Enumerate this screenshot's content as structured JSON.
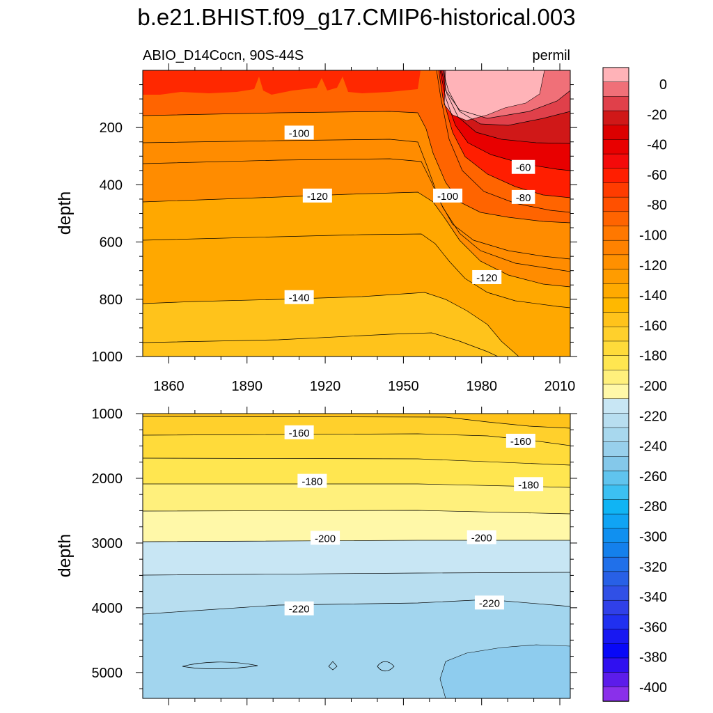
{
  "chart_data": {
    "type": "contour",
    "title": "b.e21.BHIST.f09_g17.CMIP6-historical.003",
    "left_subtitle": "ABIO_D14Cocn, 90S-44S",
    "right_subtitle": "permil",
    "xlabel": "",
    "ylabel": "depth",
    "x_ticks": [
      "1860",
      "1890",
      "1920",
      "1950",
      "1980",
      "2010"
    ],
    "x_tick_values": [
      1860,
      1890,
      1920,
      1950,
      1980,
      2010
    ],
    "xlim": [
      1850,
      2014
    ],
    "panels": [
      {
        "name": "upper",
        "ylabel": "depth",
        "ylim": [
          0,
          1000
        ],
        "y_ticks": [
          "200",
          "400",
          "600",
          "800",
          "1000"
        ],
        "y_tick_values": [
          200,
          400,
          600,
          800,
          1000
        ],
        "contour_labels": [
          {
            "text": "-100",
            "year": 1910,
            "depth": 220
          },
          {
            "text": "-120",
            "year": 1917,
            "depth": 440
          },
          {
            "text": "-140",
            "year": 1910,
            "depth": 795
          },
          {
            "text": "-60",
            "year": 1996,
            "depth": 340
          },
          {
            "text": "-80",
            "year": 1996,
            "depth": 445
          },
          {
            "text": "-100",
            "year": 1967,
            "depth": 440
          },
          {
            "text": "-120",
            "year": 1982,
            "depth": 725
          }
        ]
      },
      {
        "name": "lower",
        "ylabel": "depth",
        "ylim": [
          1000,
          5400
        ],
        "y_ticks": [
          "1000",
          "2000",
          "3000",
          "4000",
          "5000"
        ],
        "y_tick_values": [
          1000,
          2000,
          3000,
          4000,
          5000
        ],
        "contour_labels": [
          {
            "text": "-160",
            "year": 1910,
            "depth": 1300
          },
          {
            "text": "-160",
            "year": 1995,
            "depth": 1430
          },
          {
            "text": "-180",
            "year": 1915,
            "depth": 2050
          },
          {
            "text": "-180",
            "year": 1998,
            "depth": 2100
          },
          {
            "text": "-200",
            "year": 1920,
            "depth": 2930
          },
          {
            "text": "-200",
            "year": 1980,
            "depth": 2920
          },
          {
            "text": "-220",
            "year": 1910,
            "depth": 4020
          },
          {
            "text": "-220",
            "year": 1983,
            "depth": 3930
          }
        ]
      }
    ],
    "colorbar": {
      "labels": [
        "0",
        "-20",
        "-40",
        "-60",
        "-80",
        "-100",
        "-120",
        "-140",
        "-160",
        "-180",
        "-200",
        "-220",
        "-240",
        "-260",
        "-280",
        "-300",
        "-320",
        "-340",
        "-360",
        "-380",
        "-400"
      ],
      "colors": [
        "#FFB3B8",
        "#F07078",
        "#E0404A",
        "#D01818",
        "#DC0000",
        "#E80000",
        "#F40A0A",
        "#FF1E00",
        "#FF3C00",
        "#FF5000",
        "#FF6400",
        "#FF7800",
        "#FF8200",
        "#FF9000",
        "#FF9C00",
        "#FFAA00",
        "#FFB800",
        "#FFC31B",
        "#FFD02C",
        "#FFDB3A",
        "#FFE650",
        "#FFF07C",
        "#FFF8A8",
        "#C8E6F4",
        "#B8DEF0",
        "#A8D8EE",
        "#98D0EC",
        "#84C8EA",
        "#60C4EE",
        "#3CC0F2",
        "#10B4F4",
        "#10A4F4",
        "#1090F0",
        "#1480EC",
        "#2070EA",
        "#2860E6",
        "#3050E6",
        "#3040E8",
        "#2030F0",
        "#1818F2",
        "#0808F8",
        "#3010F0",
        "#5C1CEA",
        "#8A30EA"
      ]
    }
  }
}
